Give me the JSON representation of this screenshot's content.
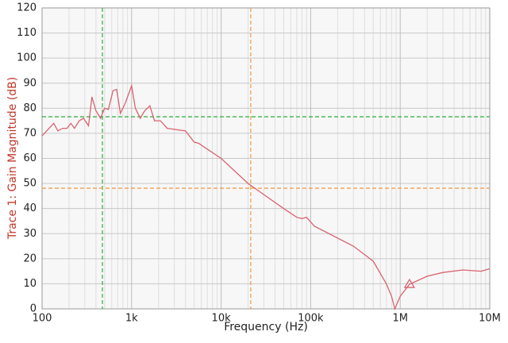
{
  "chart_data": {
    "type": "line",
    "xlabel": "Frequency (Hz)",
    "ylabel": "Trace 1: Gain Magnitude (dB)",
    "ylabel_color": "#c0392b",
    "xscale": "log",
    "grid": true,
    "xlim": [
      100,
      10000000
    ],
    "ylim": [
      0,
      120
    ],
    "xticks": [
      100,
      {
        "value": 1000,
        "label": "1k"
      },
      {
        "value": 10000,
        "label": "10k"
      },
      {
        "value": 100000,
        "label": "100k"
      },
      {
        "value": 1000000,
        "label": "1M"
      },
      {
        "value": 10000000,
        "label": "10M"
      }
    ],
    "yticks": [
      0,
      10,
      20,
      30,
      40,
      50,
      60,
      70,
      80,
      90,
      100,
      110,
      120
    ],
    "x": [
      100,
      120,
      135,
      150,
      170,
      190,
      210,
      230,
      260,
      290,
      330,
      360,
      400,
      450,
      500,
      550,
      620,
      680,
      750,
      850,
      1000,
      1100,
      1250,
      1400,
      1600,
      1800,
      2100,
      2500,
      4000,
      5000,
      5600,
      10000,
      20000,
      50000,
      70000,
      80000,
      90000,
      110000,
      300000,
      500000,
      700000,
      800000,
      870000,
      1000000,
      1270000,
      2000000,
      3000000,
      5000000,
      8000000,
      10000000
    ],
    "series": [
      {
        "name": "Trace 1",
        "color": "#d9636e",
        "values": [
          69,
          72,
          74,
          71,
          72,
          72,
          74,
          72,
          75,
          76,
          73,
          84.5,
          79,
          76,
          80,
          79.5,
          87,
          87.5,
          78,
          82,
          89,
          80,
          76,
          79,
          81,
          75,
          75,
          72,
          71,
          66.5,
          66,
          60,
          50,
          40,
          36.5,
          36,
          36.5,
          33,
          25,
          19,
          10,
          5,
          0,
          5,
          9.8,
          13,
          14.5,
          15.5,
          15,
          16
        ]
      }
    ],
    "cursors": [
      {
        "x": 472,
        "y": 76.6,
        "color": "#3cb44b"
      },
      {
        "x": 21400,
        "y": 48.1,
        "color": "#f0a050"
      }
    ],
    "marker": {
      "x": 1270000,
      "y": 9.8,
      "color": "#d9636e"
    }
  }
}
